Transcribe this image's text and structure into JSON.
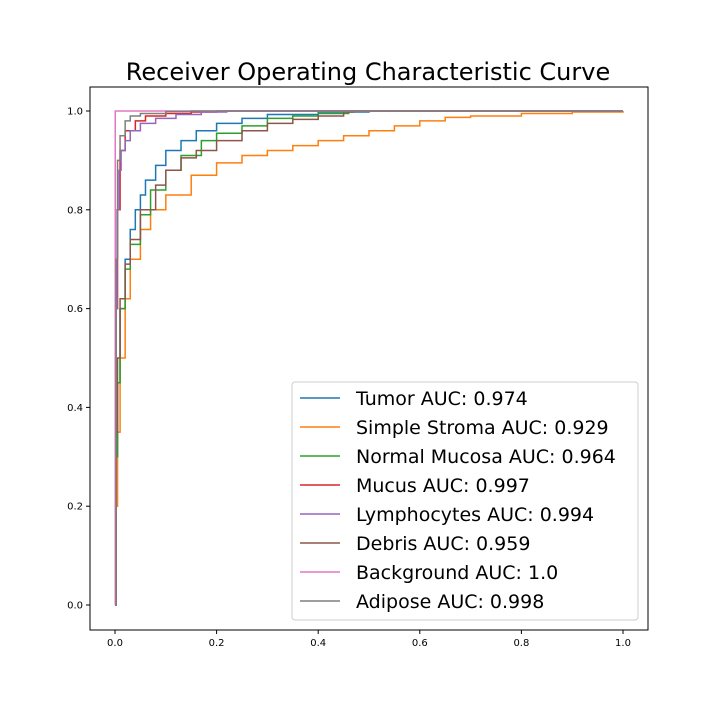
{
  "chart_data": {
    "type": "line",
    "title": "Receiver Operating Characteristic Curve",
    "xlim": [
      0.0,
      1.0
    ],
    "ylim": [
      0.0,
      1.0
    ],
    "x_ticks": [
      "0.0",
      "0.2",
      "0.4",
      "0.6",
      "0.8",
      "1.0"
    ],
    "y_ticks": [
      "0.0",
      "0.2",
      "0.4",
      "0.6",
      "0.8",
      "1.0"
    ],
    "grid": false,
    "legend_position": "lower-right",
    "series": [
      {
        "name": "Tumor AUC: 0.974",
        "color": "#1f77b4",
        "points": [
          [
            0,
            0
          ],
          [
            0.002,
            0.3
          ],
          [
            0.005,
            0.45
          ],
          [
            0.01,
            0.6
          ],
          [
            0.02,
            0.7
          ],
          [
            0.03,
            0.76
          ],
          [
            0.04,
            0.8
          ],
          [
            0.05,
            0.83
          ],
          [
            0.06,
            0.86
          ],
          [
            0.08,
            0.89
          ],
          [
            0.1,
            0.92
          ],
          [
            0.13,
            0.94
          ],
          [
            0.16,
            0.96
          ],
          [
            0.2,
            0.975
          ],
          [
            0.25,
            0.985
          ],
          [
            0.3,
            0.993
          ],
          [
            0.4,
            0.998
          ],
          [
            0.5,
            1.0
          ],
          [
            1.0,
            1.0
          ]
        ]
      },
      {
        "name": "Simple Stroma AUC: 0.929",
        "color": "#ff7f0e",
        "points": [
          [
            0,
            0
          ],
          [
            0.002,
            0.2
          ],
          [
            0.005,
            0.35
          ],
          [
            0.01,
            0.5
          ],
          [
            0.02,
            0.62
          ],
          [
            0.03,
            0.7
          ],
          [
            0.05,
            0.76
          ],
          [
            0.07,
            0.8
          ],
          [
            0.1,
            0.83
          ],
          [
            0.15,
            0.87
          ],
          [
            0.2,
            0.895
          ],
          [
            0.25,
            0.91
          ],
          [
            0.3,
            0.92
          ],
          [
            0.35,
            0.93
          ],
          [
            0.4,
            0.94
          ],
          [
            0.45,
            0.95
          ],
          [
            0.5,
            0.96
          ],
          [
            0.55,
            0.97
          ],
          [
            0.6,
            0.98
          ],
          [
            0.65,
            0.987
          ],
          [
            0.7,
            0.99
          ],
          [
            0.8,
            0.995
          ],
          [
            0.9,
            0.998
          ],
          [
            1.0,
            1.0
          ]
        ]
      },
      {
        "name": "Normal Mucosa AUC: 0.964",
        "color": "#2ca02c",
        "points": [
          [
            0,
            0
          ],
          [
            0.002,
            0.3
          ],
          [
            0.005,
            0.45
          ],
          [
            0.01,
            0.6
          ],
          [
            0.02,
            0.68
          ],
          [
            0.03,
            0.73
          ],
          [
            0.05,
            0.79
          ],
          [
            0.07,
            0.84
          ],
          [
            0.1,
            0.88
          ],
          [
            0.13,
            0.91
          ],
          [
            0.17,
            0.94
          ],
          [
            0.2,
            0.955
          ],
          [
            0.25,
            0.97
          ],
          [
            0.3,
            0.985
          ],
          [
            0.35,
            0.99
          ],
          [
            0.4,
            0.995
          ],
          [
            0.46,
            1.0
          ],
          [
            1.0,
            1.0
          ]
        ]
      },
      {
        "name": "Mucus AUC: 0.997",
        "color": "#d62728",
        "points": [
          [
            0,
            0
          ],
          [
            0.002,
            0.6
          ],
          [
            0.005,
            0.8
          ],
          [
            0.01,
            0.92
          ],
          [
            0.02,
            0.96
          ],
          [
            0.04,
            0.98
          ],
          [
            0.06,
            0.99
          ],
          [
            0.1,
            0.995
          ],
          [
            0.15,
            0.998
          ],
          [
            0.2,
            1.0
          ],
          [
            1.0,
            1.0
          ]
        ]
      },
      {
        "name": "Lymphocytes AUC: 0.994",
        "color": "#9467bd",
        "points": [
          [
            0,
            0
          ],
          [
            0.002,
            0.6
          ],
          [
            0.004,
            0.8
          ],
          [
            0.008,
            0.88
          ],
          [
            0.012,
            0.92
          ],
          [
            0.02,
            0.94
          ],
          [
            0.03,
            0.96
          ],
          [
            0.05,
            0.975
          ],
          [
            0.08,
            0.985
          ],
          [
            0.12,
            0.993
          ],
          [
            0.17,
            0.998
          ],
          [
            0.22,
            1.0
          ],
          [
            1.0,
            1.0
          ]
        ]
      },
      {
        "name": "Debris AUC: 0.959",
        "color": "#8c564b",
        "points": [
          [
            0,
            0
          ],
          [
            0.002,
            0.35
          ],
          [
            0.005,
            0.5
          ],
          [
            0.01,
            0.62
          ],
          [
            0.02,
            0.69
          ],
          [
            0.03,
            0.74
          ],
          [
            0.05,
            0.8
          ],
          [
            0.08,
            0.85
          ],
          [
            0.1,
            0.88
          ],
          [
            0.13,
            0.905
          ],
          [
            0.16,
            0.92
          ],
          [
            0.2,
            0.94
          ],
          [
            0.25,
            0.96
          ],
          [
            0.3,
            0.975
          ],
          [
            0.35,
            0.983
          ],
          [
            0.4,
            0.99
          ],
          [
            0.45,
            0.998
          ],
          [
            0.47,
            1.0
          ],
          [
            1.0,
            1.0
          ]
        ]
      },
      {
        "name": "Background AUC: 1.0",
        "color": "#e377c2",
        "points": [
          [
            0,
            0
          ],
          [
            0.0005,
            1.0
          ],
          [
            1.0,
            1.0
          ]
        ]
      },
      {
        "name": "Adipose AUC: 0.998",
        "color": "#7f7f7f",
        "points": [
          [
            0,
            0
          ],
          [
            0.002,
            0.7
          ],
          [
            0.005,
            0.9
          ],
          [
            0.01,
            0.95
          ],
          [
            0.02,
            0.98
          ],
          [
            0.03,
            0.99
          ],
          [
            0.05,
            0.995
          ],
          [
            0.1,
            0.999
          ],
          [
            0.15,
            1.0
          ],
          [
            1.0,
            1.0
          ]
        ]
      }
    ]
  }
}
